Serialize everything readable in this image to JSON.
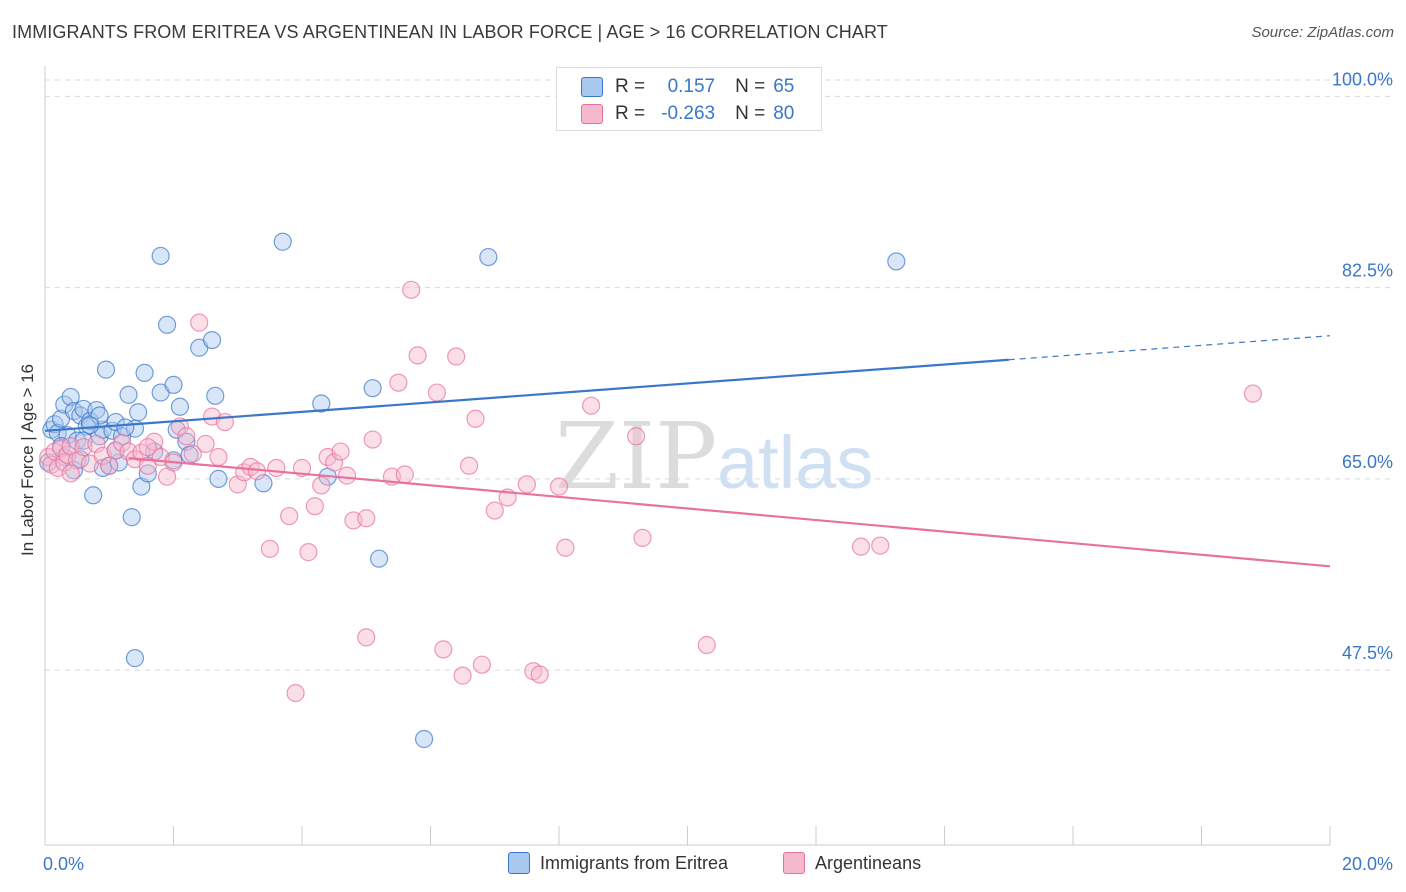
{
  "header": {
    "title": "IMMIGRANTS FROM ERITREA VS ARGENTINEAN IN LABOR FORCE | AGE > 16 CORRELATION CHART",
    "source": "Source: ZipAtlas.com"
  },
  "watermark": {
    "zip": "ZIP",
    "atlas": "atlas"
  },
  "legend": {
    "rows": [
      {
        "r_label": "R =",
        "r_value": "0.157",
        "n_label": "N =",
        "n_value": "65",
        "color": "#a8c8f0"
      },
      {
        "r_label": "R =",
        "r_value": "-0.263",
        "n_label": "N =",
        "n_value": "80",
        "color": "#f6b8cb"
      }
    ]
  },
  "chart_data": {
    "type": "scatter",
    "title": "IMMIGRANTS FROM ERITREA VS ARGENTINEAN IN LABOR FORCE | AGE > 16 CORRELATION CHART",
    "ylabel": "In Labor Force | Age > 16",
    "xlabel": "",
    "xlim": [
      0,
      20
    ],
    "ylim": [
      35,
      100
    ],
    "x_tick_labels": [
      "0.0%",
      "20.0%"
    ],
    "y_tick_labels": [
      "100.0%",
      "82.5%",
      "65.0%",
      "47.5%"
    ],
    "y_ticks": [
      100,
      82.5,
      65,
      47.5
    ],
    "grid": true,
    "colors": {
      "eritrea": "#3a77c9",
      "argentinean": "#e8719d",
      "eritrea_fill": "#a8c8f0",
      "argentinean_fill": "#f6b8cb"
    },
    "series": [
      {
        "name": "Immigrants from Eritrea",
        "trend": {
          "x": [
            0,
            15
          ],
          "y": [
            69.4,
            75.9
          ],
          "dashed_to": [
            20,
            78.1
          ]
        },
        "points": [
          [
            0.05,
            66.5
          ],
          [
            0.1,
            69.5
          ],
          [
            0.15,
            70.0
          ],
          [
            0.2,
            69.2
          ],
          [
            0.25,
            70.5
          ],
          [
            0.3,
            71.8
          ],
          [
            0.35,
            69.0
          ],
          [
            0.4,
            72.5
          ],
          [
            0.45,
            71.2
          ],
          [
            0.5,
            68.5
          ],
          [
            0.55,
            70.8
          ],
          [
            0.6,
            71.4
          ],
          [
            0.65,
            69.8
          ],
          [
            0.7,
            70.3
          ],
          [
            0.75,
            63.5
          ],
          [
            0.8,
            71.3
          ],
          [
            0.85,
            68.9
          ],
          [
            0.9,
            69.5
          ],
          [
            0.95,
            75.0
          ],
          [
            1.0,
            66.2
          ],
          [
            1.05,
            69.4
          ],
          [
            1.1,
            70.2
          ],
          [
            1.15,
            66.5
          ],
          [
            1.2,
            68.9
          ],
          [
            1.3,
            72.7
          ],
          [
            1.35,
            61.5
          ],
          [
            1.4,
            69.6
          ],
          [
            1.45,
            71.1
          ],
          [
            1.5,
            64.3
          ],
          [
            1.55,
            74.7
          ],
          [
            1.7,
            67.5
          ],
          [
            1.8,
            72.9
          ],
          [
            1.8,
            85.4
          ],
          [
            1.9,
            79.1
          ],
          [
            2.0,
            73.6
          ],
          [
            2.05,
            69.5
          ],
          [
            2.1,
            71.6
          ],
          [
            2.2,
            68.4
          ],
          [
            2.25,
            67.2
          ],
          [
            2.4,
            77.0
          ],
          [
            2.6,
            77.7
          ],
          [
            2.65,
            72.6
          ],
          [
            2.7,
            65.0
          ],
          [
            3.4,
            64.6
          ],
          [
            3.7,
            86.7
          ],
          [
            4.3,
            71.9
          ],
          [
            4.4,
            65.2
          ],
          [
            5.1,
            73.3
          ],
          [
            5.2,
            57.7
          ],
          [
            5.9,
            41.2
          ],
          [
            6.9,
            85.3
          ],
          [
            13.25,
            84.9
          ],
          [
            0.6,
            68.5
          ],
          [
            0.9,
            66.0
          ],
          [
            1.25,
            69.7
          ],
          [
            1.6,
            65.5
          ],
          [
            0.3,
            67.0
          ],
          [
            2.0,
            66.7
          ],
          [
            0.45,
            65.8
          ],
          [
            1.4,
            48.6
          ],
          [
            1.1,
            67.6
          ],
          [
            0.25,
            68.0
          ],
          [
            0.55,
            66.8
          ],
          [
            0.85,
            70.8
          ],
          [
            0.7,
            69.9
          ]
        ]
      },
      {
        "name": "Argentineans",
        "trend": {
          "x": [
            1.3,
            20
          ],
          "y": [
            66.9,
            57.0
          ]
        },
        "points": [
          [
            0.05,
            67.0
          ],
          [
            0.1,
            66.3
          ],
          [
            0.15,
            67.5
          ],
          [
            0.2,
            66.0
          ],
          [
            0.25,
            67.8
          ],
          [
            0.3,
            66.5
          ],
          [
            0.35,
            67.2
          ],
          [
            0.4,
            68.0
          ],
          [
            0.5,
            66.7
          ],
          [
            0.6,
            67.9
          ],
          [
            0.7,
            66.4
          ],
          [
            0.8,
            68.2
          ],
          [
            0.9,
            67.1
          ],
          [
            1.0,
            66.2
          ],
          [
            1.1,
            67.6
          ],
          [
            1.2,
            68.3
          ],
          [
            1.3,
            67.5
          ],
          [
            1.4,
            66.8
          ],
          [
            1.5,
            67.4
          ],
          [
            1.6,
            66.2
          ],
          [
            1.7,
            68.4
          ],
          [
            1.8,
            67.0
          ],
          [
            1.9,
            65.2
          ],
          [
            2.0,
            66.5
          ],
          [
            2.1,
            69.8
          ],
          [
            2.2,
            68.9
          ],
          [
            2.3,
            67.3
          ],
          [
            2.5,
            68.2
          ],
          [
            2.6,
            70.7
          ],
          [
            2.7,
            67.0
          ],
          [
            2.8,
            70.2
          ],
          [
            3.0,
            64.5
          ],
          [
            3.1,
            65.6
          ],
          [
            3.2,
            66.1
          ],
          [
            3.3,
            65.7
          ],
          [
            3.5,
            58.6
          ],
          [
            3.6,
            66.0
          ],
          [
            3.8,
            61.6
          ],
          [
            4.0,
            66.0
          ],
          [
            4.1,
            58.3
          ],
          [
            4.2,
            62.5
          ],
          [
            4.3,
            64.4
          ],
          [
            4.4,
            67.0
          ],
          [
            4.5,
            66.5
          ],
          [
            4.7,
            65.3
          ],
          [
            4.8,
            61.2
          ],
          [
            5.0,
            61.4
          ],
          [
            5.1,
            68.6
          ],
          [
            5.4,
            65.2
          ],
          [
            5.5,
            73.8
          ],
          [
            5.6,
            65.4
          ],
          [
            5.7,
            82.3
          ],
          [
            5.8,
            76.3
          ],
          [
            6.1,
            72.9
          ],
          [
            6.2,
            49.4
          ],
          [
            6.4,
            76.2
          ],
          [
            6.5,
            47.0
          ],
          [
            6.6,
            66.2
          ],
          [
            6.7,
            70.5
          ],
          [
            6.8,
            48.0
          ],
          [
            7.0,
            62.1
          ],
          [
            7.2,
            63.3
          ],
          [
            7.5,
            64.5
          ],
          [
            7.6,
            47.4
          ],
          [
            7.7,
            47.1
          ],
          [
            8.0,
            64.3
          ],
          [
            8.1,
            58.7
          ],
          [
            8.5,
            71.7
          ],
          [
            9.2,
            68.9
          ],
          [
            10.3,
            49.8
          ],
          [
            12.7,
            58.8
          ],
          [
            13.0,
            58.9
          ],
          [
            18.8,
            72.8
          ],
          [
            3.9,
            45.4
          ],
          [
            9.3,
            59.6
          ],
          [
            5.0,
            50.5
          ],
          [
            2.4,
            79.3
          ],
          [
            1.6,
            67.9
          ],
          [
            0.4,
            65.5
          ],
          [
            4.6,
            67.5
          ]
        ]
      }
    ]
  },
  "bottom_legend": {
    "items": [
      {
        "label": "Immigrants from Eritrea",
        "color": "#a8c8f0"
      },
      {
        "label": "Argentineans",
        "color": "#f6b8cb"
      }
    ]
  }
}
